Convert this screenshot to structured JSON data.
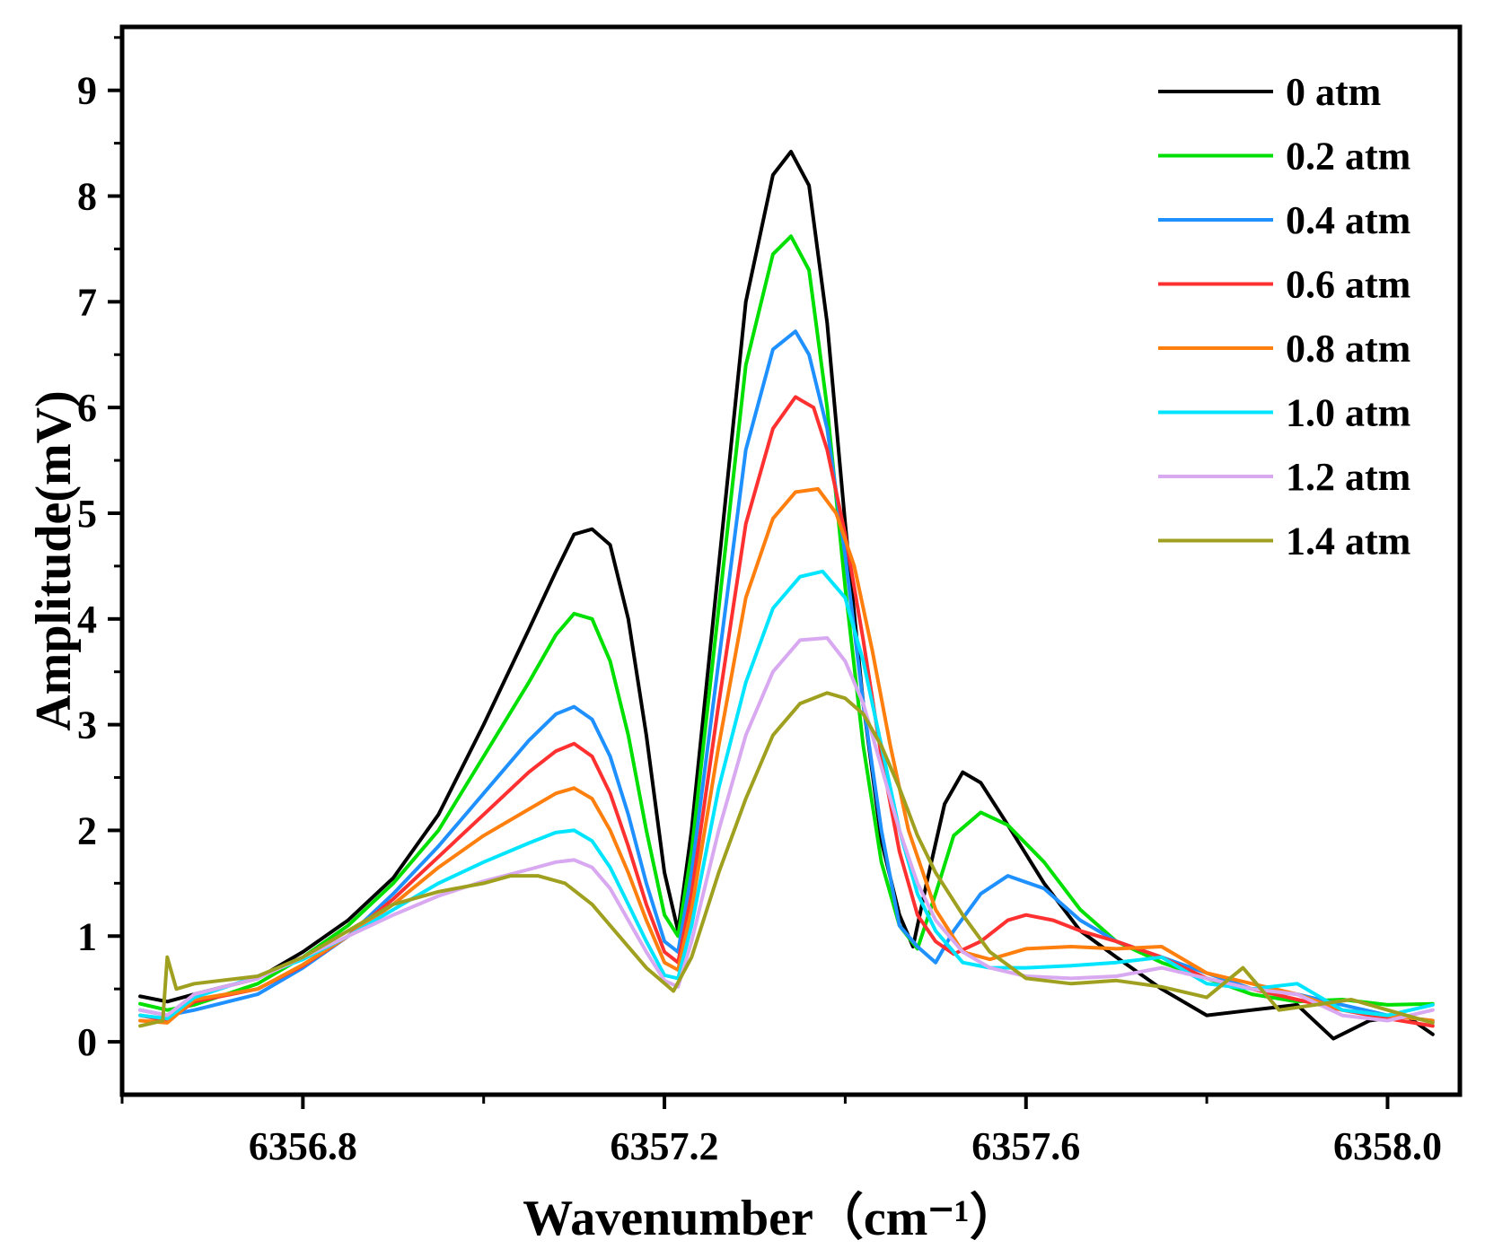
{
  "chart_data": {
    "type": "line",
    "xlabel": "Wavenumber（cm⁻¹）",
    "ylabel": "Amplitude(mV)",
    "xlim": [
      6356.6,
      6358.08
    ],
    "ylim": [
      -0.5,
      9.6
    ],
    "xticks": [
      6356.8,
      6357.2,
      6357.6,
      6358.0
    ],
    "xtick_labels": [
      "6356.8",
      "6357.2",
      "6357.6",
      "6358.0"
    ],
    "yticks": [
      0,
      1,
      2,
      3,
      4,
      5,
      6,
      7,
      8,
      9
    ],
    "ytick_labels": [
      "0",
      "1",
      "2",
      "3",
      "4",
      "5",
      "6",
      "7",
      "8",
      "9"
    ],
    "legend_position": "top-right",
    "series": [
      {
        "name": "0 atm",
        "color": "#000000",
        "x": [
          6356.62,
          6356.65,
          6356.68,
          6356.75,
          6356.8,
          6356.85,
          6356.9,
          6356.95,
          6357.0,
          6357.05,
          6357.08,
          6357.1,
          6357.12,
          6357.14,
          6357.16,
          6357.18,
          6357.2,
          6357.215,
          6357.23,
          6357.26,
          6357.29,
          6357.32,
          6357.34,
          6357.36,
          6357.38,
          6357.4,
          6357.42,
          6357.44,
          6357.46,
          6357.475,
          6357.49,
          6357.51,
          6357.53,
          6357.55,
          6357.58,
          6357.62,
          6357.66,
          6357.7,
          6357.75,
          6357.8,
          6357.85,
          6357.9,
          6357.94,
          6357.98,
          6358.02,
          6358.05
        ],
        "y": [
          0.43,
          0.38,
          0.45,
          0.6,
          0.85,
          1.15,
          1.55,
          2.15,
          3.0,
          3.9,
          4.45,
          4.8,
          4.85,
          4.7,
          4.0,
          2.9,
          1.6,
          1.05,
          2.0,
          4.5,
          7.0,
          8.2,
          8.42,
          8.1,
          6.8,
          4.9,
          3.2,
          1.9,
          1.2,
          0.9,
          1.5,
          2.25,
          2.55,
          2.45,
          2.05,
          1.5,
          1.05,
          0.8,
          0.5,
          0.25,
          0.3,
          0.35,
          0.03,
          0.2,
          0.25,
          0.07
        ]
      },
      {
        "name": "0.2 atm",
        "color": "#00e000",
        "x": [
          6356.62,
          6356.65,
          6356.68,
          6356.75,
          6356.8,
          6356.85,
          6356.9,
          6356.95,
          6357.0,
          6357.05,
          6357.08,
          6357.1,
          6357.12,
          6357.14,
          6357.16,
          6357.18,
          6357.2,
          6357.215,
          6357.23,
          6357.26,
          6357.29,
          6357.32,
          6357.34,
          6357.36,
          6357.38,
          6357.4,
          6357.42,
          6357.44,
          6357.46,
          6357.48,
          6357.5,
          6357.52,
          6357.55,
          6357.58,
          6357.62,
          6357.66,
          6357.7,
          6357.75,
          6357.8,
          6357.85,
          6357.9,
          6357.95,
          6358.0,
          6358.05
        ],
        "y": [
          0.36,
          0.3,
          0.35,
          0.55,
          0.8,
          1.1,
          1.5,
          2.0,
          2.7,
          3.4,
          3.85,
          4.05,
          4.0,
          3.6,
          2.9,
          2.0,
          1.2,
          1.0,
          1.8,
          4.1,
          6.4,
          7.45,
          7.62,
          7.3,
          6.0,
          4.3,
          2.8,
          1.7,
          1.1,
          0.88,
          1.4,
          1.95,
          2.17,
          2.05,
          1.7,
          1.25,
          0.95,
          0.75,
          0.6,
          0.45,
          0.38,
          0.4,
          0.35,
          0.36
        ]
      },
      {
        "name": "0.4 atm",
        "color": "#1e90ff",
        "x": [
          6356.62,
          6356.65,
          6356.68,
          6356.75,
          6356.8,
          6356.85,
          6356.9,
          6356.95,
          6357.0,
          6357.05,
          6357.08,
          6357.1,
          6357.12,
          6357.14,
          6357.16,
          6357.18,
          6357.2,
          6357.215,
          6357.23,
          6357.26,
          6357.29,
          6357.32,
          6357.345,
          6357.36,
          6357.38,
          6357.4,
          6357.42,
          6357.44,
          6357.46,
          6357.48,
          6357.5,
          6357.52,
          6357.55,
          6357.58,
          6357.62,
          6357.66,
          6357.7,
          6357.75,
          6357.8,
          6357.85,
          6357.9,
          6357.95,
          6358.0,
          6358.05
        ],
        "y": [
          0.3,
          0.25,
          0.3,
          0.45,
          0.7,
          1.0,
          1.4,
          1.85,
          2.35,
          2.85,
          3.1,
          3.17,
          3.05,
          2.7,
          2.15,
          1.5,
          0.95,
          0.85,
          1.6,
          3.6,
          5.6,
          6.55,
          6.72,
          6.5,
          5.8,
          4.6,
          3.2,
          2.0,
          1.1,
          0.9,
          0.75,
          1.05,
          1.4,
          1.57,
          1.45,
          1.15,
          0.95,
          0.8,
          0.65,
          0.5,
          0.45,
          0.35,
          0.25,
          0.2
        ]
      },
      {
        "name": "0.6 atm",
        "color": "#ff3030",
        "x": [
          6356.62,
          6356.65,
          6356.68,
          6356.75,
          6356.8,
          6356.85,
          6356.9,
          6356.95,
          6357.0,
          6357.05,
          6357.08,
          6357.1,
          6357.12,
          6357.14,
          6357.16,
          6357.18,
          6357.2,
          6357.215,
          6357.23,
          6357.26,
          6357.29,
          6357.32,
          6357.345,
          6357.365,
          6357.38,
          6357.4,
          6357.42,
          6357.44,
          6357.46,
          6357.48,
          6357.5,
          6357.52,
          6357.55,
          6357.58,
          6357.6,
          6357.63,
          6357.66,
          6357.7,
          6357.75,
          6357.8,
          6357.85,
          6357.9,
          6357.95,
          6358.0,
          6358.05
        ],
        "y": [
          0.25,
          0.2,
          0.38,
          0.5,
          0.72,
          1.0,
          1.35,
          1.75,
          2.15,
          2.55,
          2.75,
          2.82,
          2.7,
          2.35,
          1.85,
          1.3,
          0.85,
          0.75,
          1.4,
          3.2,
          4.9,
          5.8,
          6.1,
          6.0,
          5.6,
          4.8,
          3.8,
          2.7,
          1.8,
          1.2,
          0.95,
          0.83,
          0.95,
          1.15,
          1.2,
          1.15,
          1.05,
          0.95,
          0.8,
          0.6,
          0.5,
          0.4,
          0.3,
          0.22,
          0.15
        ]
      },
      {
        "name": "0.8 atm",
        "color": "#ff7f0e",
        "x": [
          6356.62,
          6356.65,
          6356.68,
          6356.75,
          6356.8,
          6356.85,
          6356.9,
          6356.95,
          6357.0,
          6357.05,
          6357.08,
          6357.1,
          6357.12,
          6357.14,
          6357.16,
          6357.18,
          6357.2,
          6357.215,
          6357.23,
          6357.26,
          6357.29,
          6357.32,
          6357.345,
          6357.37,
          6357.39,
          6357.41,
          6357.43,
          6357.45,
          6357.47,
          6357.5,
          6357.53,
          6357.56,
          6357.6,
          6357.65,
          6357.7,
          6357.75,
          6357.8,
          6357.85,
          6357.9,
          6357.95,
          6358.0,
          6358.05
        ],
        "y": [
          0.2,
          0.18,
          0.4,
          0.5,
          0.73,
          1.0,
          1.3,
          1.65,
          1.95,
          2.2,
          2.35,
          2.4,
          2.3,
          2.0,
          1.6,
          1.15,
          0.75,
          0.68,
          1.25,
          2.8,
          4.2,
          4.95,
          5.2,
          5.23,
          5.0,
          4.5,
          3.7,
          2.8,
          2.0,
          1.25,
          0.85,
          0.78,
          0.88,
          0.9,
          0.88,
          0.9,
          0.65,
          0.55,
          0.45,
          0.3,
          0.25,
          0.2
        ]
      },
      {
        "name": "1.0 atm",
        "color": "#00e5ff",
        "x": [
          6356.62,
          6356.65,
          6356.68,
          6356.75,
          6356.8,
          6356.85,
          6356.9,
          6356.95,
          6357.0,
          6357.05,
          6357.08,
          6357.1,
          6357.12,
          6357.14,
          6357.16,
          6357.18,
          6357.2,
          6357.215,
          6357.23,
          6357.26,
          6357.29,
          6357.32,
          6357.35,
          6357.375,
          6357.4,
          6357.42,
          6357.44,
          6357.46,
          6357.48,
          6357.5,
          6357.53,
          6357.56,
          6357.6,
          6357.65,
          6357.7,
          6357.75,
          6357.8,
          6357.85,
          6357.9,
          6357.95,
          6358.0,
          6358.05
        ],
        "y": [
          0.25,
          0.22,
          0.42,
          0.62,
          0.78,
          1.0,
          1.25,
          1.5,
          1.7,
          1.88,
          1.98,
          2.0,
          1.9,
          1.65,
          1.3,
          0.95,
          0.63,
          0.6,
          1.1,
          2.4,
          3.4,
          4.1,
          4.4,
          4.45,
          4.2,
          3.6,
          2.8,
          2.0,
          1.4,
          1.05,
          0.75,
          0.7,
          0.7,
          0.72,
          0.75,
          0.8,
          0.55,
          0.5,
          0.55,
          0.3,
          0.25,
          0.35
        ]
      },
      {
        "name": "1.2 atm",
        "color": "#d8a8f0",
        "x": [
          6356.62,
          6356.65,
          6356.68,
          6356.75,
          6356.8,
          6356.85,
          6356.9,
          6356.95,
          6357.0,
          6357.05,
          6357.08,
          6357.1,
          6357.12,
          6357.14,
          6357.16,
          6357.18,
          6357.2,
          6357.215,
          6357.23,
          6357.26,
          6357.29,
          6357.32,
          6357.35,
          6357.38,
          6357.4,
          6357.42,
          6357.44,
          6357.46,
          6357.48,
          6357.5,
          6357.53,
          6357.56,
          6357.6,
          6357.65,
          6357.7,
          6357.75,
          6357.8,
          6357.85,
          6357.9,
          6357.95,
          6358.0,
          6358.05
        ],
        "y": [
          0.3,
          0.25,
          0.45,
          0.6,
          0.8,
          1.0,
          1.2,
          1.38,
          1.52,
          1.63,
          1.7,
          1.72,
          1.65,
          1.45,
          1.15,
          0.85,
          0.58,
          0.52,
          0.95,
          2.0,
          2.9,
          3.5,
          3.8,
          3.82,
          3.6,
          3.2,
          2.6,
          2.0,
          1.5,
          1.15,
          0.85,
          0.7,
          0.62,
          0.6,
          0.62,
          0.7,
          0.6,
          0.5,
          0.45,
          0.25,
          0.2,
          0.3
        ]
      },
      {
        "name": "1.4 atm",
        "color": "#a0a020",
        "x": [
          6356.62,
          6356.645,
          6356.65,
          6356.66,
          6356.68,
          6356.75,
          6356.8,
          6356.85,
          6356.9,
          6356.95,
          6357.0,
          6357.03,
          6357.06,
          6357.09,
          6357.12,
          6357.15,
          6357.18,
          6357.21,
          6357.23,
          6357.26,
          6357.29,
          6357.32,
          6357.35,
          6357.38,
          6357.4,
          6357.42,
          6357.44,
          6357.46,
          6357.48,
          6357.5,
          6357.53,
          6357.56,
          6357.6,
          6357.65,
          6357.7,
          6357.75,
          6357.8,
          6357.84,
          6357.88,
          6357.92,
          6357.96,
          6358.0,
          6358.05
        ],
        "y": [
          0.15,
          0.2,
          0.8,
          0.5,
          0.55,
          0.62,
          0.8,
          1.05,
          1.3,
          1.42,
          1.5,
          1.57,
          1.57,
          1.5,
          1.3,
          1.0,
          0.7,
          0.48,
          0.8,
          1.6,
          2.3,
          2.9,
          3.2,
          3.3,
          3.25,
          3.1,
          2.8,
          2.4,
          1.95,
          1.6,
          1.2,
          0.85,
          0.6,
          0.55,
          0.58,
          0.52,
          0.42,
          0.7,
          0.3,
          0.35,
          0.4,
          0.3,
          0.18
        ]
      }
    ]
  }
}
